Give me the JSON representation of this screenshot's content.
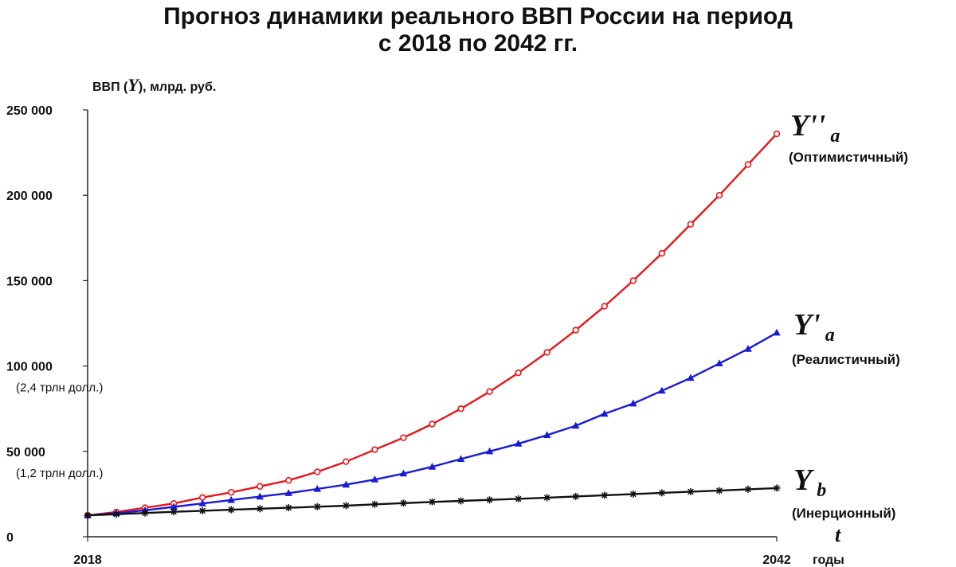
{
  "chart_data": {
    "type": "line",
    "title_line1": "Прогноз динамики реального ВВП России на период",
    "title_line2": "с 2018 по 2042 гг.",
    "ylabel_prefix": "ВВП (",
    "ylabel_symbol": "Y",
    "ylabel_suffix": "), млрд. руб.",
    "xlabel_symbol": "t",
    "xlabel": "годы",
    "x_tick_labels": [
      "2018",
      "2042"
    ],
    "y_ticks": [
      0,
      50000,
      100000,
      150000,
      200000,
      250000
    ],
    "y_tick_labels": [
      "0",
      "50 000",
      "100 000",
      "150 000",
      "200 000",
      "250 000"
    ],
    "y_tick_notes": {
      "50000": "(1,2 трлн долл.)",
      "100000": "(2,4 трлн долл.)"
    },
    "xlim": [
      2018,
      2042
    ],
    "ylim": [
      0,
      250000
    ],
    "grid": false,
    "x": [
      2018,
      2019,
      2020,
      2021,
      2022,
      2023,
      2024,
      2025,
      2026,
      2027,
      2028,
      2029,
      2030,
      2031,
      2032,
      2033,
      2034,
      2035,
      2036,
      2037,
      2038,
      2039,
      2040,
      2041,
      2042
    ],
    "series": [
      {
        "symbol": "Y''",
        "subscript": "a",
        "name": "(Оптимистичный)",
        "color": "#e8161b",
        "marker": "circle",
        "values": [
          12500,
          14500,
          17000,
          19500,
          23000,
          26000,
          29500,
          33000,
          38000,
          44000,
          51000,
          58000,
          66000,
          75000,
          85000,
          96000,
          108000,
          121000,
          135000,
          150000,
          166000,
          183000,
          200000,
          218000,
          236000
        ]
      },
      {
        "symbol": "Y'",
        "subscript": "a",
        "name": "(Реалистичный)",
        "color": "#1a1ad6",
        "marker": "triangle",
        "values": [
          12500,
          13800,
          15500,
          17500,
          19500,
          21500,
          23500,
          25500,
          28000,
          30500,
          33500,
          37000,
          41000,
          45500,
          50000,
          54500,
          59500,
          65000,
          72000,
          78000,
          85500,
          93000,
          101500,
          110000,
          119500
        ]
      },
      {
        "symbol": "Y",
        "subscript": "b",
        "name": "(Инерционный)",
        "color": "#111111",
        "marker": "asterisk",
        "values": [
          12500,
          13200,
          13900,
          14600,
          15200,
          15800,
          16400,
          17000,
          17600,
          18200,
          19000,
          19700,
          20400,
          21000,
          21600,
          22200,
          22900,
          23600,
          24300,
          25000,
          25700,
          26400,
          27000,
          27800,
          28500
        ]
      }
    ]
  }
}
